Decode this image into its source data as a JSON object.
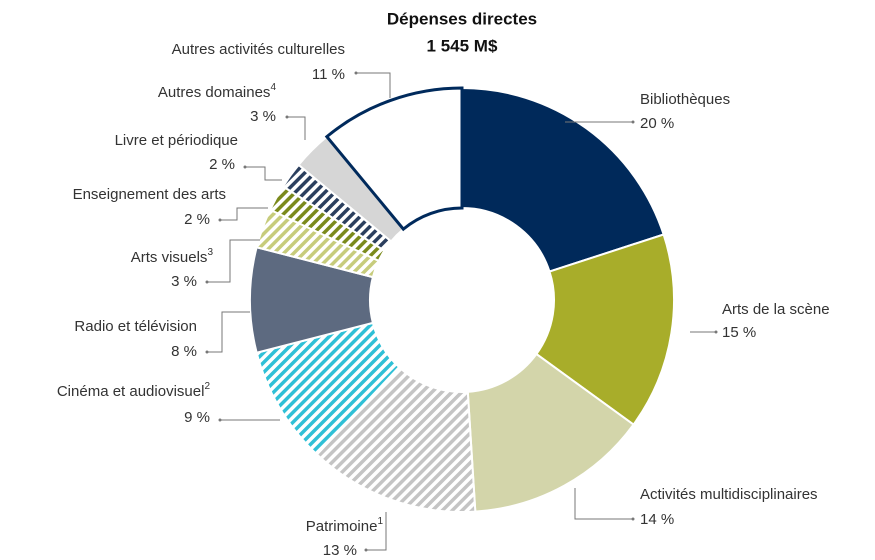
{
  "chart_data": {
    "type": "donut",
    "title": "Dépenses directes",
    "subtitle": "1 545 M$",
    "categories": [
      "Bibliothèques",
      "Arts de la scène",
      "Activités multidisciplinaires",
      "Patrimoine",
      "Cinéma et audiovisuel",
      "Radio et télévision",
      "Arts visuels",
      "Enseignement des arts",
      "Livre et périodique",
      "Autres domaines",
      "Autres activités culturelles"
    ],
    "notes": [
      null,
      null,
      null,
      "1",
      "2",
      null,
      "3",
      null,
      null,
      "4",
      null
    ],
    "values": [
      20,
      15,
      14,
      13,
      9,
      8,
      3,
      2,
      2,
      3,
      11
    ],
    "value_labels": [
      "20 %",
      "15 %",
      "14 %",
      "13 %",
      "9 %",
      "8 %",
      "3 %",
      "2 %",
      "2 %",
      "3 %",
      "11 %"
    ],
    "colors": [
      "#00295a",
      "#a8ad2a",
      "#d3d5aa",
      "#c4c4c4",
      "#2fc0d6",
      "#5d6a80",
      "#c7cc7c",
      "#7b8a1c",
      "#2b3f5e",
      "#d6d6d6",
      "#ffffff"
    ],
    "hatched": [
      false,
      false,
      false,
      true,
      true,
      false,
      true,
      true,
      true,
      false,
      false
    ],
    "edges": [
      null,
      null,
      null,
      null,
      null,
      null,
      null,
      null,
      null,
      null,
      "#002a5c"
    ]
  }
}
